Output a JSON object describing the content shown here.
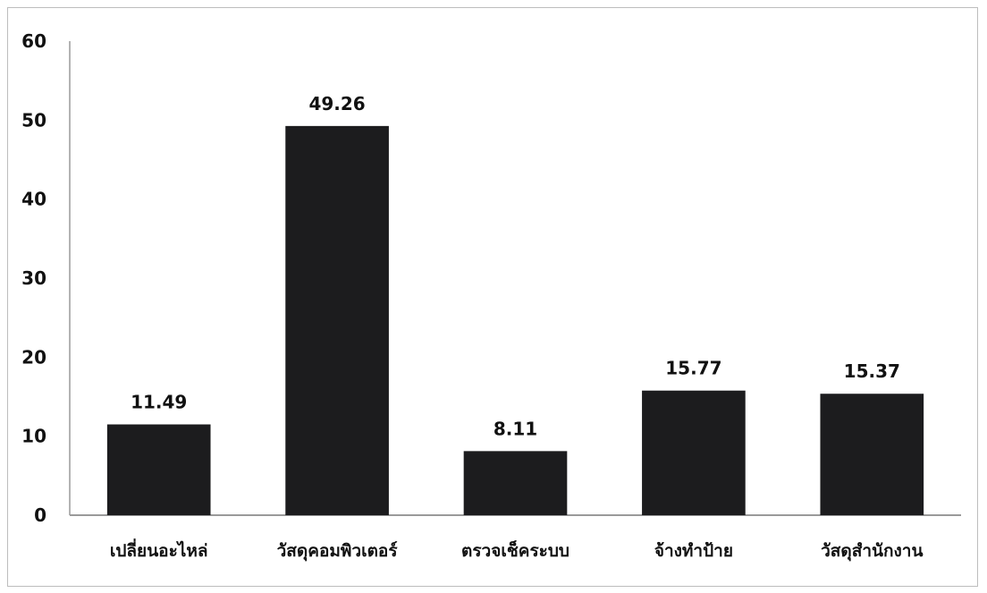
{
  "chart_data": {
    "type": "bar",
    "categories": [
      "เปลี่ยนอะไหล่",
      "วัสดุคอมพิวเตอร์",
      "ตรวจเช็คระบบ",
      "จ้างทำป้าย",
      "วัสดุสำนักงาน"
    ],
    "values": [
      11.49,
      49.26,
      8.11,
      15.77,
      15.37
    ],
    "data_labels": [
      "11.49",
      "49.26",
      "8.11",
      "15.77",
      "15.37"
    ],
    "title": "",
    "xlabel": "",
    "ylabel": "",
    "ylim": [
      0,
      60
    ],
    "yticks": [
      0,
      10,
      20,
      30,
      40,
      50,
      60
    ],
    "grid": false,
    "legend": "none",
    "bar_color": "#1c1c1e",
    "axis_color": "#9a9a9a"
  }
}
